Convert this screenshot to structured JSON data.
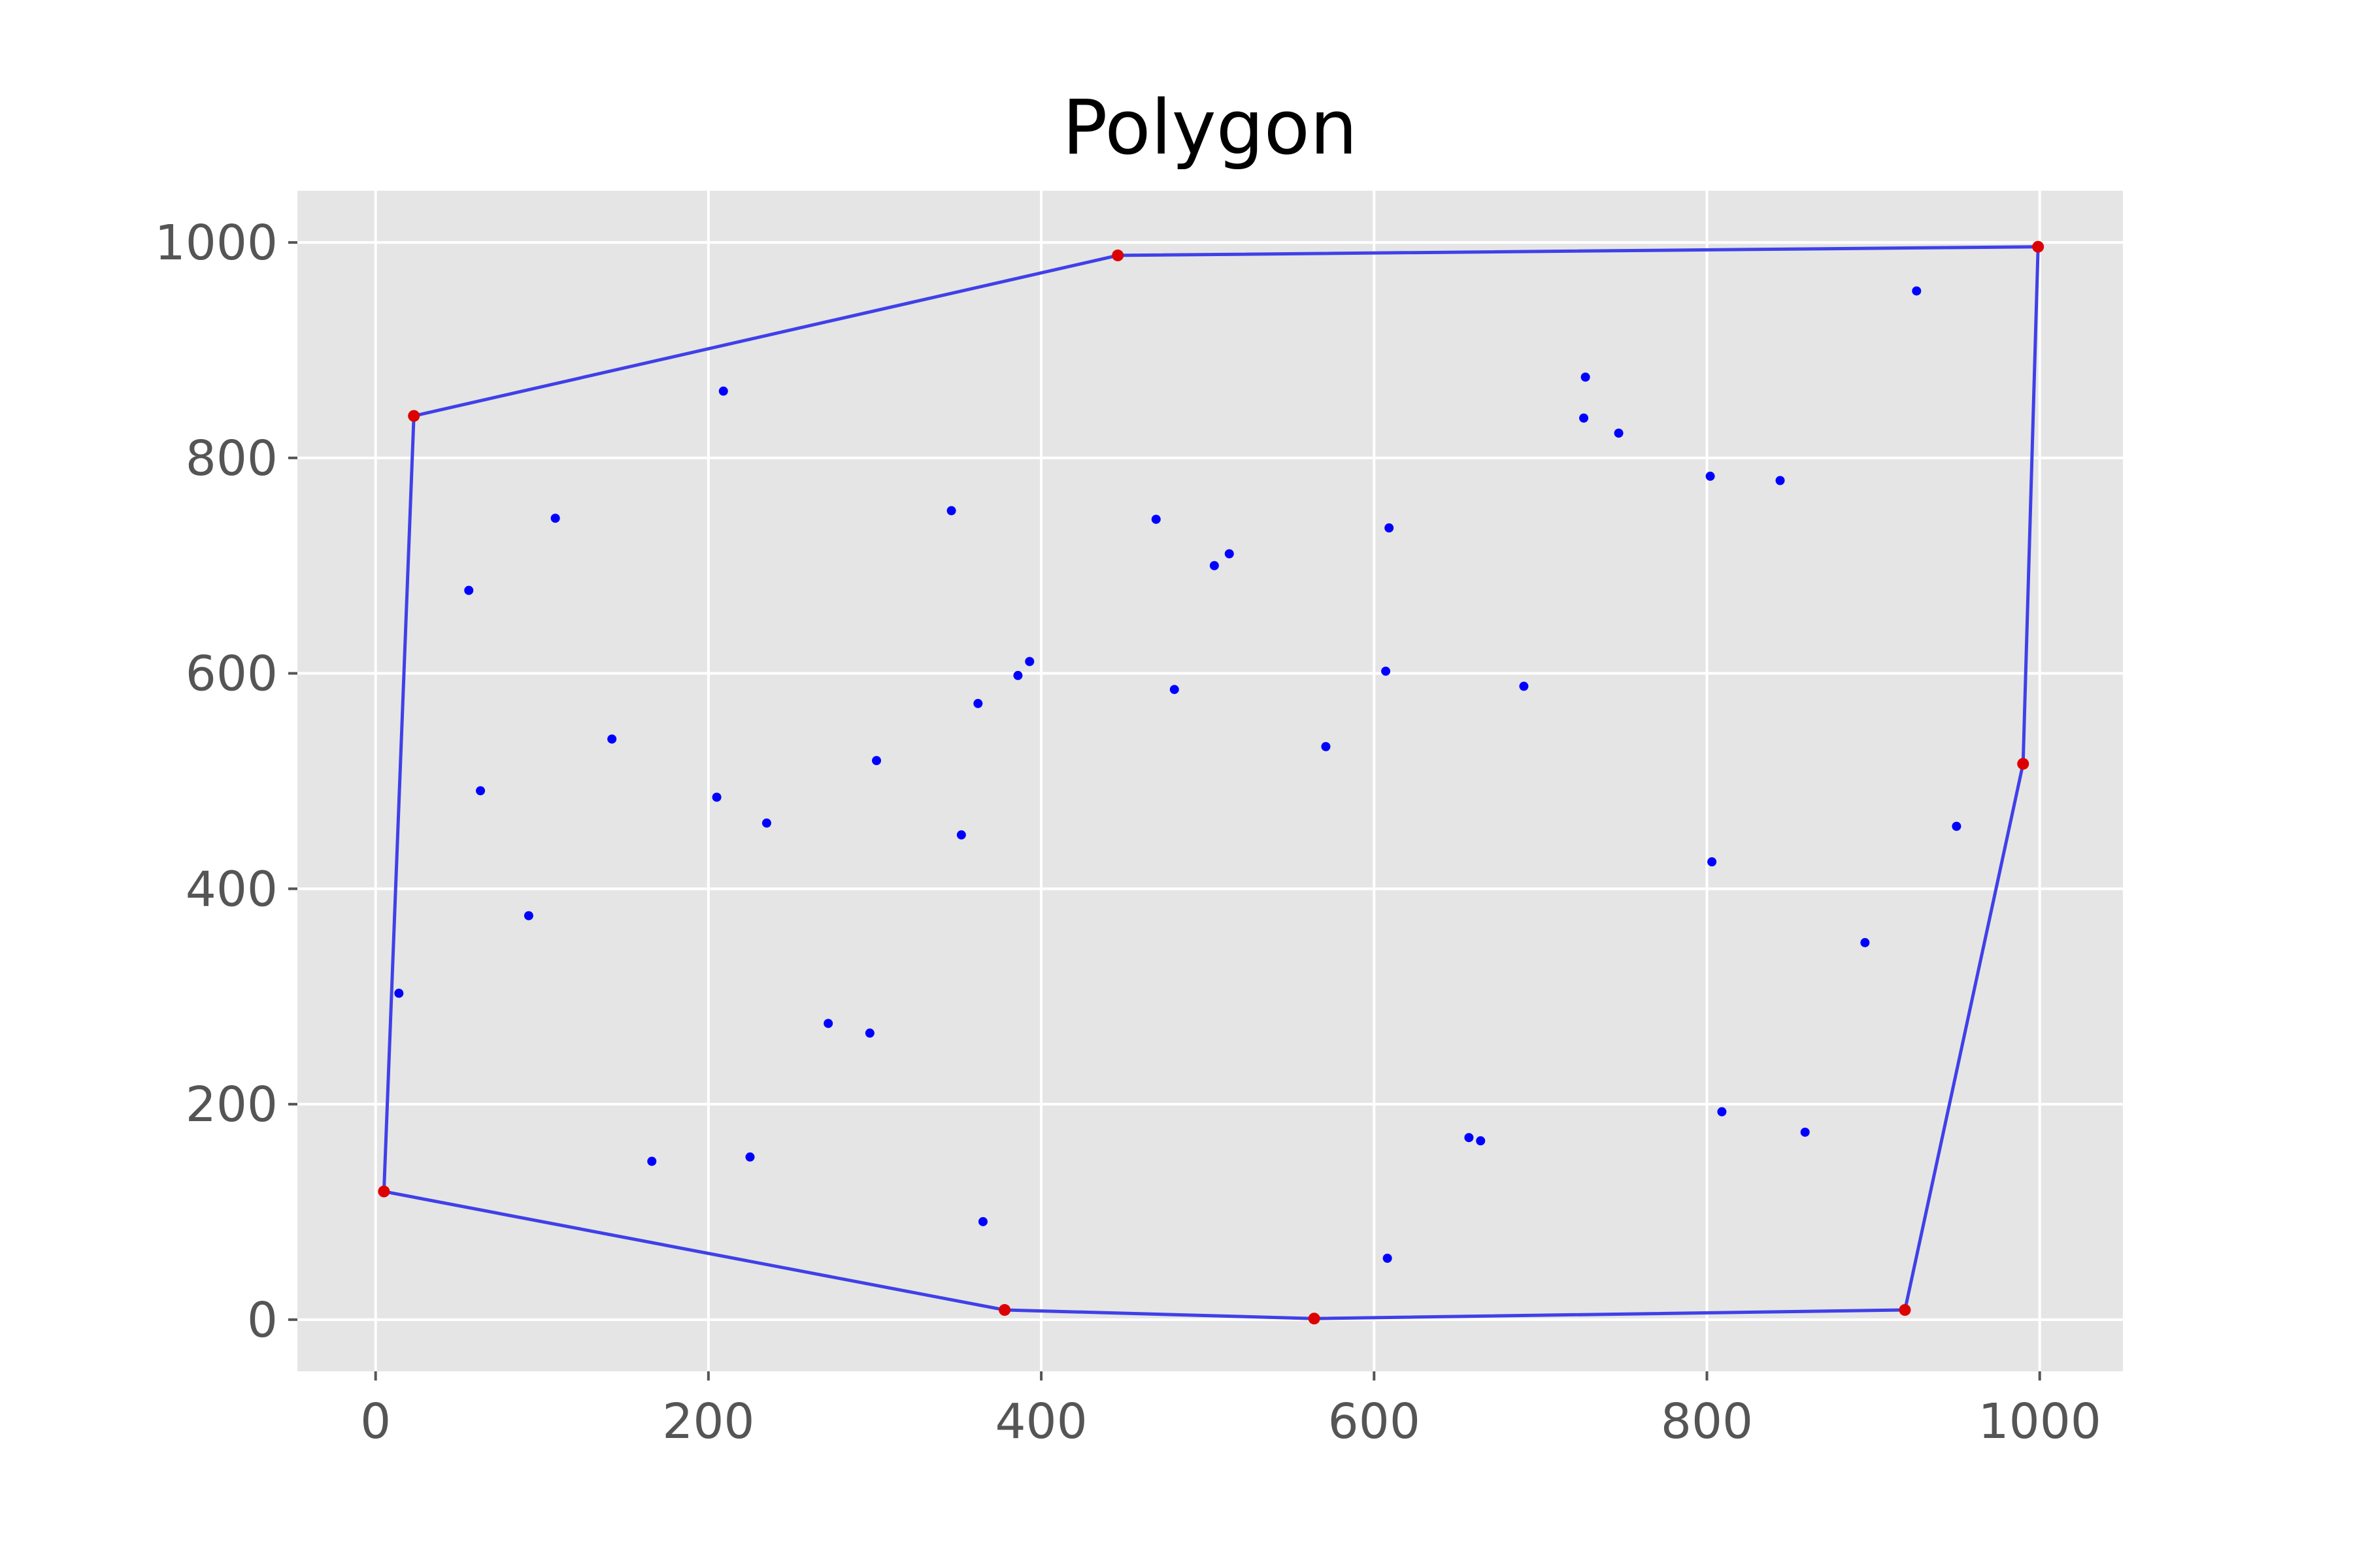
{
  "chart_data": {
    "type": "scatter",
    "title": "Polygon",
    "xlabel": "",
    "ylabel": "",
    "xlim": [
      -47,
      1050
    ],
    "ylim": [
      -48,
      1048
    ],
    "xticks": [
      0,
      200,
      400,
      600,
      800,
      1000
    ],
    "yticks": [
      0,
      200,
      400,
      600,
      800,
      1000
    ],
    "grid": true,
    "colors": {
      "background": "#e5e5e5",
      "grid": "#ffffff",
      "points": "#0000ff",
      "hull_line": "#4040e8",
      "hull_vertices": "#dd0000"
    },
    "series": [
      {
        "kind": "points",
        "values": [
          [
            14,
            303
          ],
          [
            56,
            677
          ],
          [
            63,
            491
          ],
          [
            92,
            375
          ],
          [
            108,
            744
          ],
          [
            142,
            539
          ],
          [
            166,
            147
          ],
          [
            205,
            485
          ],
          [
            209,
            862
          ],
          [
            225,
            151
          ],
          [
            235,
            461
          ],
          [
            272,
            275
          ],
          [
            297,
            266
          ],
          [
            301,
            519
          ],
          [
            346,
            751
          ],
          [
            352,
            450
          ],
          [
            362,
            572
          ],
          [
            365,
            91
          ],
          [
            386,
            598
          ],
          [
            393,
            611
          ],
          [
            469,
            743
          ],
          [
            480,
            585
          ],
          [
            504,
            700
          ],
          [
            513,
            711
          ],
          [
            571,
            532
          ],
          [
            607,
            602
          ],
          [
            608,
            57
          ],
          [
            609,
            735
          ],
          [
            657,
            169
          ],
          [
            664,
            166
          ],
          [
            690,
            588
          ],
          [
            726,
            837
          ],
          [
            727,
            875
          ],
          [
            747,
            823
          ],
          [
            802,
            783
          ],
          [
            803,
            425
          ],
          [
            809,
            193
          ],
          [
            844,
            779
          ],
          [
            859,
            174
          ],
          [
            895,
            350
          ],
          [
            926,
            955
          ],
          [
            950,
            458
          ]
        ]
      },
      {
        "kind": "polygon",
        "closed": true,
        "values": [
          [
            5,
            119
          ],
          [
            378,
            9
          ],
          [
            564,
            1
          ],
          [
            919,
            9
          ],
          [
            990,
            516
          ],
          [
            999,
            996
          ],
          [
            446,
            988
          ],
          [
            23,
            839
          ]
        ]
      }
    ]
  }
}
